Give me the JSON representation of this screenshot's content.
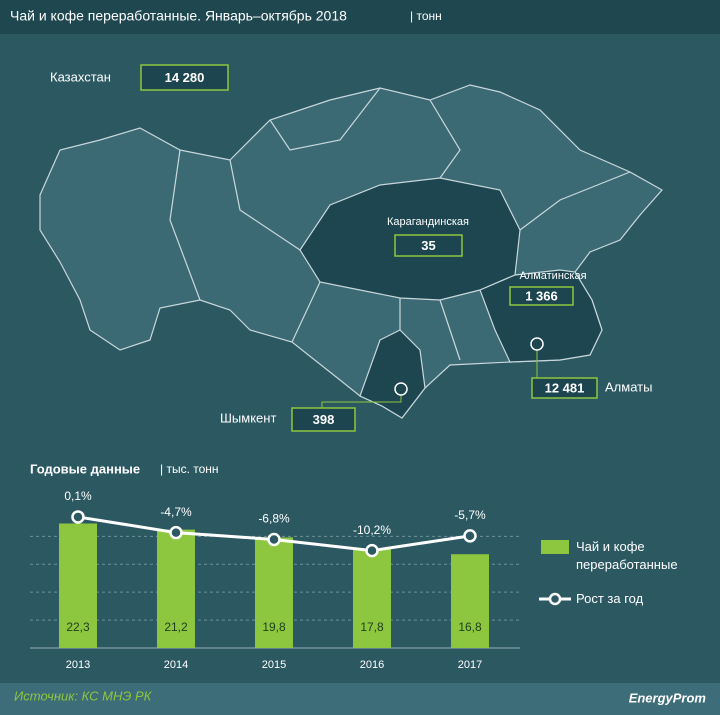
{
  "header": {
    "title": "Чай и кофе переработанные.  Январь–октябрь 2018",
    "unit": "| тонн"
  },
  "map": {
    "total": {
      "label": "Казахстан",
      "value": "14 280"
    },
    "regions": [
      {
        "label": "Карагандинская",
        "value": "35"
      },
      {
        "label": "Алматинская",
        "value": "1 366"
      },
      {
        "label": "Алматы",
        "value": "12 481"
      },
      {
        "label": "Шымкент",
        "value": "398"
      }
    ]
  },
  "chart_data": {
    "type": "bar",
    "title": "Годовые данные",
    "unit": "| тыс. тонн",
    "categories": [
      "2013",
      "2014",
      "2015",
      "2016",
      "2017"
    ],
    "series": [
      {
        "name": "Чай и кофе переработанные",
        "color": "#8dc63f",
        "values": [
          22.3,
          21.2,
          19.8,
          17.8,
          16.8
        ],
        "value_labels": [
          "22,3",
          "21,2",
          "19,8",
          "17,8",
          "16,8"
        ]
      },
      {
        "name": "Рост за год",
        "type": "line",
        "axis": "y2",
        "color": "#ffffff",
        "values": [
          0.1,
          -4.7,
          -6.8,
          -10.2,
          -5.7
        ],
        "value_labels": [
          "0,1%",
          "-4,7%",
          "-6,8%",
          "-10,2%",
          "-5,7%"
        ]
      }
    ],
    "ylim": [
      0,
      24
    ],
    "yticks": [
      5,
      10,
      15,
      20
    ],
    "y2lim": [
      -40,
      1
    ],
    "grid": true
  },
  "footer": {
    "source": "Источник: КС МНЭ РК",
    "brand": "EnergyProm"
  }
}
